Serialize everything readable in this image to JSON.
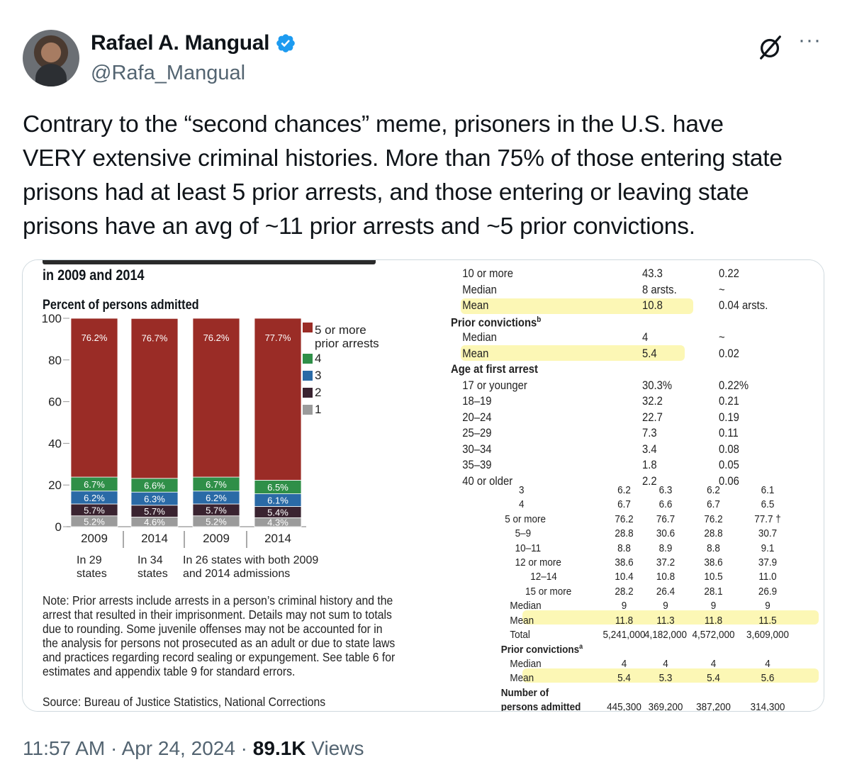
{
  "author": {
    "name": "Rafael A. Mangual",
    "handle": "@Rafa_Mangual"
  },
  "icons": {
    "verified": "verified-badge-icon",
    "grok": "grok-icon",
    "more": "more-icon"
  },
  "tweet_text": "Contrary to the “second chances” meme, prisoners in the U.S. have\nVERY extensive criminal histories. More than 75% of those entering state\nprisons had at least 5 prior arrests, and those entering or leaving state\nprisons have an avg of ~11 prior arrests and ~5 prior convictions.",
  "footer": {
    "time": "11:57 AM · Apr 24, 2024 · ",
    "views_count": "89.1K",
    "views_label": " Views"
  },
  "left_panel": {
    "title": "in 2009 and 2014",
    "ylabel": "Percent of persons admitted",
    "note": "Note: Prior arrests include arrests in a person’s criminal history and the arrest that resulted in their imprisonment. Details may not sum to totals due to rounding. Some juvenile offenses may not be accounted for in the analysis for persons not prosecuted as an adult or due to state laws and practices regarding record sealing or expungement. See table 6 for estimates and appendix table 9 for standard errors.",
    "source": "Source: Bureau of Justice Statistics, National Corrections",
    "groups": [
      {
        "label": "In 29\nstates"
      },
      {
        "label": "In 34\nstates"
      },
      {
        "label": "In 26 states with both 2009\nand 2014 admissions"
      }
    ]
  },
  "chart_data": {
    "type": "bar",
    "stacked": true,
    "ylabel": "Percent of persons admitted",
    "ylim": [
      0,
      100
    ],
    "yticks": [
      "0",
      "20",
      "40",
      "60",
      "80",
      "100"
    ],
    "categories": [
      "2009",
      "2014",
      "2009",
      "2014"
    ],
    "legend_placement": "right",
    "series": [
      {
        "name": "1",
        "color": "#9b9b9b",
        "values": [
          5.2,
          4.6,
          5.2,
          4.3
        ],
        "labels": [
          "5.2%",
          "4.6%",
          "5.2%",
          "4.3%"
        ]
      },
      {
        "name": "2",
        "color": "#3a2330",
        "values": [
          5.7,
          5.7,
          5.7,
          5.4
        ],
        "labels": [
          "5.7%",
          "5.7%",
          "5.7%",
          "5.4%"
        ]
      },
      {
        "name": "3",
        "color": "#2a6aa6",
        "values": [
          6.2,
          6.3,
          6.2,
          6.1
        ],
        "labels": [
          "6.2%",
          "6.3%",
          "6.2%",
          "6.1%"
        ]
      },
      {
        "name": "4",
        "color": "#2f8f48",
        "values": [
          6.7,
          6.6,
          6.7,
          6.5
        ],
        "labels": [
          "6.7%",
          "6.6%",
          "6.7%",
          "6.5%"
        ]
      },
      {
        "name": "5 or more prior arrests",
        "color": "#9a2c26",
        "values": [
          76.2,
          76.7,
          76.2,
          77.7
        ],
        "labels": [
          "76.2%",
          "76.7%",
          "76.2%",
          "77.7%"
        ]
      }
    ]
  },
  "right_top_table": [
    {
      "label": "10 or more",
      "c1": "43.3",
      "c2": "0.22"
    },
    {
      "label": "Median",
      "c1": "8 arsts.",
      "c2": "~"
    },
    {
      "label": "Mean",
      "c1": "10.8",
      "c2": "0.04 arsts."
    },
    {
      "label": "Prior convictions",
      "sup": "b",
      "c1": "",
      "c2": "",
      "heading": true
    },
    {
      "label": "Median",
      "c1": "4",
      "c2": "~"
    },
    {
      "label": "Mean",
      "c1": "5.4",
      "c2": "0.02"
    },
    {
      "label": "Age at first arrest",
      "c1": "",
      "c2": "",
      "heading": true
    },
    {
      "label": "17 or younger",
      "c1": "30.3%",
      "c2": "0.22%"
    },
    {
      "label": "18–19",
      "c1": "32.2",
      "c2": "0.21"
    },
    {
      "label": "20–24",
      "c1": "22.7",
      "c2": "0.19"
    },
    {
      "label": "25–29",
      "c1": "7.3",
      "c2": "0.11"
    },
    {
      "label": "30–34",
      "c1": "3.4",
      "c2": "0.08"
    },
    {
      "label": "35–39",
      "c1": "1.8",
      "c2": "0.05"
    },
    {
      "label": "40 or older",
      "c1": "2.2",
      "c2": "0.06"
    }
  ],
  "right_bottom_table": [
    {
      "label": "3",
      "ind": 2,
      "v": [
        "6.2",
        "6.3",
        "6.2",
        "6.1"
      ]
    },
    {
      "label": "4",
      "ind": 2,
      "v": [
        "6.7",
        "6.6",
        "6.7",
        "6.5"
      ]
    },
    {
      "label": "5 or more",
      "ind": 1,
      "v": [
        "76.2",
        "76.7",
        "76.2",
        "77.7 †"
      ]
    },
    {
      "label": "5–9",
      "ind": 2,
      "v": [
        "28.8",
        "30.6",
        "28.8",
        "30.7"
      ]
    },
    {
      "label": "10–11",
      "ind": 2,
      "v": [
        "8.8",
        "8.9",
        "8.8",
        "9.1"
      ]
    },
    {
      "label": "12 or more",
      "ind": 2,
      "v": [
        "38.6",
        "37.2",
        "38.6",
        "37.9"
      ]
    },
    {
      "label": "12–14",
      "ind": 3,
      "v": [
        "10.4",
        "10.8",
        "10.5",
        "11.0"
      ]
    },
    {
      "label": "15 or more",
      "ind": 3,
      "v": [
        "28.2",
        "26.4",
        "28.1",
        "26.9"
      ]
    },
    {
      "label": "Median",
      "ind": 0,
      "v": [
        "9",
        "9",
        "9",
        "9"
      ]
    },
    {
      "label": "Mean",
      "ind": 0,
      "v": [
        "11.8",
        "11.3",
        "11.8",
        "11.5"
      ]
    },
    {
      "label": "Total",
      "ind": 0,
      "v": [
        "5,241,000",
        "4,182,000",
        "4,572,000",
        "3,609,000"
      ]
    },
    {
      "label": "Prior convictions",
      "sup": "a",
      "ind": -1,
      "v": [
        "",
        "",
        "",
        ""
      ]
    },
    {
      "label": "Median",
      "ind": 0,
      "v": [
        "4",
        "4",
        "4",
        "4"
      ]
    },
    {
      "label": "Mean",
      "ind": 0,
      "v": [
        "5.4",
        "5.3",
        "5.4",
        "5.6"
      ]
    },
    {
      "label": "Number of",
      "ind": -1,
      "v": [
        "",
        "",
        "",
        ""
      ]
    },
    {
      "label": "persons admitted",
      "ind": -1,
      "v": [
        "445,300",
        "369,200",
        "387,200",
        "314,300"
      ]
    }
  ]
}
